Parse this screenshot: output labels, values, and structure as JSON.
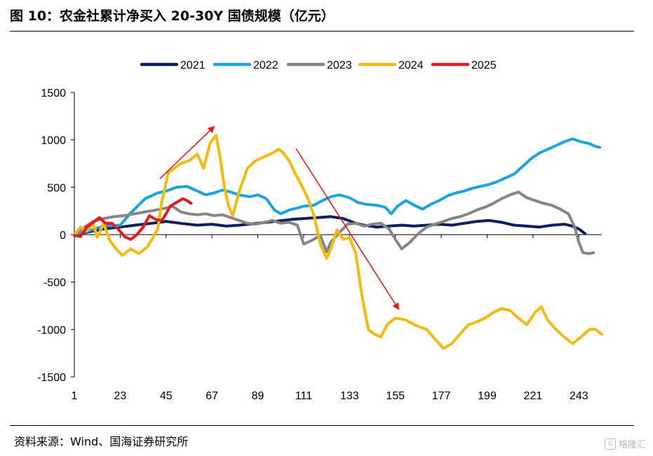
{
  "figure": {
    "title": "图 10：农金社累计净买入 20-30Y 国债规模（亿元）",
    "source": "资料来源：Wind、国海证券研究所",
    "watermark": "格隆汇"
  },
  "chart_data": {
    "type": "line",
    "title": "农金社累计净买入 20-30Y 国债规模（亿元）",
    "xlabel": "",
    "ylabel": "",
    "ylim": [
      -1500,
      1500
    ],
    "xlim": [
      1,
      254
    ],
    "yticks": [
      1500,
      1000,
      500,
      0,
      -500,
      -1000,
      -1500
    ],
    "xticks": [
      1,
      23,
      45,
      67,
      89,
      111,
      133,
      155,
      177,
      199,
      221,
      243
    ],
    "legend_position": "top-center",
    "series": [
      {
        "name": "2021",
        "color": "#0b1f5c",
        "points": [
          [
            1,
            0
          ],
          [
            8,
            30
          ],
          [
            15,
            60
          ],
          [
            23,
            80
          ],
          [
            30,
            100
          ],
          [
            38,
            120
          ],
          [
            45,
            140
          ],
          [
            52,
            120
          ],
          [
            60,
            100
          ],
          [
            67,
            110
          ],
          [
            74,
            90
          ],
          [
            80,
            100
          ],
          [
            89,
            120
          ],
          [
            97,
            140
          ],
          [
            105,
            160
          ],
          [
            111,
            170
          ],
          [
            118,
            180
          ],
          [
            124,
            190
          ],
          [
            130,
            170
          ],
          [
            136,
            120
          ],
          [
            140,
            100
          ],
          [
            146,
            80
          ],
          [
            152,
            90
          ],
          [
            158,
            100
          ],
          [
            164,
            90
          ],
          [
            170,
            100
          ],
          [
            176,
            110
          ],
          [
            182,
            100
          ],
          [
            188,
            120
          ],
          [
            194,
            140
          ],
          [
            200,
            150
          ],
          [
            206,
            130
          ],
          [
            212,
            100
          ],
          [
            218,
            90
          ],
          [
            224,
            80
          ],
          [
            230,
            100
          ],
          [
            236,
            110
          ],
          [
            240,
            90
          ],
          [
            243,
            60
          ],
          [
            246,
            10
          ]
        ]
      },
      {
        "name": "2022",
        "color": "#1aa3e0",
        "points": [
          [
            1,
            0
          ],
          [
            8,
            40
          ],
          [
            15,
            90
          ],
          [
            23,
            100
          ],
          [
            28,
            230
          ],
          [
            35,
            380
          ],
          [
            41,
            440
          ],
          [
            45,
            460
          ],
          [
            50,
            500
          ],
          [
            55,
            510
          ],
          [
            60,
            460
          ],
          [
            64,
            420
          ],
          [
            68,
            440
          ],
          [
            72,
            470
          ],
          [
            76,
            450
          ],
          [
            80,
            420
          ],
          [
            85,
            400
          ],
          [
            89,
            420
          ],
          [
            93,
            380
          ],
          [
            97,
            260
          ],
          [
            100,
            220
          ],
          [
            104,
            260
          ],
          [
            108,
            280
          ],
          [
            111,
            300
          ],
          [
            116,
            310
          ],
          [
            120,
            360
          ],
          [
            124,
            400
          ],
          [
            128,
            420
          ],
          [
            133,
            390
          ],
          [
            137,
            340
          ],
          [
            141,
            320
          ],
          [
            146,
            310
          ],
          [
            150,
            290
          ],
          [
            153,
            220
          ],
          [
            156,
            300
          ],
          [
            160,
            360
          ],
          [
            164,
            310
          ],
          [
            168,
            270
          ],
          [
            172,
            320
          ],
          [
            176,
            360
          ],
          [
            180,
            410
          ],
          [
            184,
            440
          ],
          [
            188,
            460
          ],
          [
            192,
            490
          ],
          [
            196,
            510
          ],
          [
            200,
            530
          ],
          [
            204,
            560
          ],
          [
            208,
            600
          ],
          [
            212,
            640
          ],
          [
            216,
            720
          ],
          [
            220,
            800
          ],
          [
            224,
            860
          ],
          [
            228,
            900
          ],
          [
            232,
            940
          ],
          [
            236,
            980
          ],
          [
            240,
            1010
          ],
          [
            244,
            980
          ],
          [
            248,
            960
          ],
          [
            251,
            930
          ],
          [
            253,
            920
          ]
        ]
      },
      {
        "name": "2023",
        "color": "#858585",
        "points": [
          [
            1,
            0
          ],
          [
            6,
            80
          ],
          [
            10,
            140
          ],
          [
            15,
            170
          ],
          [
            20,
            190
          ],
          [
            25,
            200
          ],
          [
            30,
            220
          ],
          [
            35,
            240
          ],
          [
            40,
            260
          ],
          [
            45,
            280
          ],
          [
            48,
            300
          ],
          [
            52,
            240
          ],
          [
            56,
            220
          ],
          [
            60,
            210
          ],
          [
            64,
            220
          ],
          [
            68,
            200
          ],
          [
            72,
            210
          ],
          [
            76,
            180
          ],
          [
            80,
            150
          ],
          [
            84,
            120
          ],
          [
            88,
            110
          ],
          [
            92,
            130
          ],
          [
            96,
            150
          ],
          [
            100,
            120
          ],
          [
            104,
            130
          ],
          [
            108,
            100
          ],
          [
            111,
            -100
          ],
          [
            115,
            -60
          ],
          [
            119,
            -10
          ],
          [
            122,
            -180
          ],
          [
            124,
            -80
          ],
          [
            128,
            20
          ],
          [
            132,
            110
          ],
          [
            136,
            120
          ],
          [
            140,
            90
          ],
          [
            144,
            110
          ],
          [
            148,
            120
          ],
          [
            152,
            60
          ],
          [
            155,
            -50
          ],
          [
            158,
            -150
          ],
          [
            162,
            -80
          ],
          [
            166,
            10
          ],
          [
            170,
            80
          ],
          [
            174,
            110
          ],
          [
            178,
            140
          ],
          [
            182,
            170
          ],
          [
            186,
            190
          ],
          [
            190,
            220
          ],
          [
            194,
            260
          ],
          [
            198,
            290
          ],
          [
            202,
            330
          ],
          [
            206,
            380
          ],
          [
            210,
            420
          ],
          [
            214,
            450
          ],
          [
            218,
            390
          ],
          [
            222,
            360
          ],
          [
            226,
            330
          ],
          [
            230,
            310
          ],
          [
            234,
            270
          ],
          [
            238,
            220
          ],
          [
            241,
            80
          ],
          [
            243,
            -80
          ],
          [
            245,
            -190
          ],
          [
            248,
            -200
          ],
          [
            250,
            -190
          ]
        ]
      },
      {
        "name": "2024",
        "color": "#f2b90f",
        "points": [
          [
            1,
            0
          ],
          [
            4,
            80
          ],
          [
            7,
            40
          ],
          [
            10,
            120
          ],
          [
            12,
            -30
          ],
          [
            15,
            120
          ],
          [
            18,
            -60
          ],
          [
            21,
            -150
          ],
          [
            24,
            -220
          ],
          [
            28,
            -150
          ],
          [
            32,
            -200
          ],
          [
            36,
            -130
          ],
          [
            39,
            -20
          ],
          [
            41,
            60
          ],
          [
            43,
            350
          ],
          [
            46,
            650
          ],
          [
            49,
            700
          ],
          [
            52,
            750
          ],
          [
            56,
            780
          ],
          [
            60,
            850
          ],
          [
            63,
            700
          ],
          [
            66,
            960
          ],
          [
            69,
            1050
          ],
          [
            71,
            800
          ],
          [
            73,
            500
          ],
          [
            75,
            300
          ],
          [
            77,
            200
          ],
          [
            80,
            450
          ],
          [
            84,
            700
          ],
          [
            88,
            780
          ],
          [
            92,
            820
          ],
          [
            96,
            860
          ],
          [
            99,
            900
          ],
          [
            101,
            870
          ],
          [
            104,
            780
          ],
          [
            107,
            640
          ],
          [
            110,
            520
          ],
          [
            113,
            380
          ],
          [
            116,
            200
          ],
          [
            119,
            -100
          ],
          [
            122,
            -250
          ],
          [
            124,
            -150
          ],
          [
            127,
            50
          ],
          [
            130,
            -50
          ],
          [
            133,
            -30
          ],
          [
            136,
            -200
          ],
          [
            139,
            -650
          ],
          [
            142,
            -1000
          ],
          [
            145,
            -1050
          ],
          [
            148,
            -1080
          ],
          [
            151,
            -950
          ],
          [
            155,
            -880
          ],
          [
            160,
            -900
          ],
          [
            165,
            -960
          ],
          [
            170,
            -1000
          ],
          [
            174,
            -1100
          ],
          [
            178,
            -1200
          ],
          [
            182,
            -1150
          ],
          [
            186,
            -1050
          ],
          [
            190,
            -950
          ],
          [
            194,
            -920
          ],
          [
            198,
            -880
          ],
          [
            202,
            -820
          ],
          [
            206,
            -780
          ],
          [
            210,
            -800
          ],
          [
            214,
            -880
          ],
          [
            218,
            -950
          ],
          [
            222,
            -820
          ],
          [
            225,
            -760
          ],
          [
            228,
            -900
          ],
          [
            232,
            -1000
          ],
          [
            236,
            -1080
          ],
          [
            240,
            -1150
          ],
          [
            244,
            -1080
          ],
          [
            248,
            -1000
          ],
          [
            251,
            -1000
          ],
          [
            254,
            -1050
          ]
        ]
      },
      {
        "name": "2025",
        "color": "#e31a1c",
        "points": [
          [
            1,
            -10
          ],
          [
            4,
            -20
          ],
          [
            7,
            80
          ],
          [
            10,
            130
          ],
          [
            13,
            180
          ],
          [
            16,
            120
          ],
          [
            19,
            120
          ],
          [
            22,
            60
          ],
          [
            25,
            -20
          ],
          [
            28,
            -50
          ],
          [
            31,
            0
          ],
          [
            34,
            80
          ],
          [
            37,
            200
          ],
          [
            40,
            160
          ],
          [
            43,
            150
          ],
          [
            45,
            220
          ],
          [
            47,
            300
          ],
          [
            50,
            340
          ],
          [
            53,
            380
          ],
          [
            55,
            360
          ],
          [
            57,
            330
          ]
        ]
      }
    ]
  }
}
